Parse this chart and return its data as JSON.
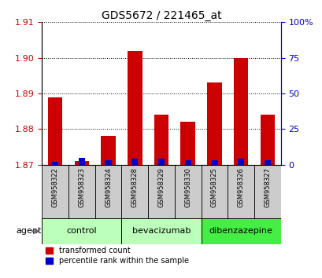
{
  "title": "GDS5672 / 221465_at",
  "samples": [
    "GSM958322",
    "GSM958323",
    "GSM958324",
    "GSM958328",
    "GSM958329",
    "GSM958330",
    "GSM958325",
    "GSM958326",
    "GSM958327"
  ],
  "transformed_count": [
    1.889,
    1.871,
    1.878,
    1.902,
    1.884,
    1.882,
    1.893,
    1.9,
    1.884
  ],
  "percentile_rank": [
    2,
    5,
    3,
    4,
    4,
    3,
    3,
    4,
    3
  ],
  "groups": [
    {
      "label": "control",
      "color": "#bbffbb",
      "start": 0,
      "end": 3
    },
    {
      "label": "bevacizumab",
      "color": "#bbffbb",
      "start": 3,
      "end": 6
    },
    {
      "label": "dibenzazepine",
      "color": "#44ee44",
      "start": 6,
      "end": 9
    }
  ],
  "ylim_left": [
    1.87,
    1.91
  ],
  "ylim_right": [
    0,
    100
  ],
  "yticks_left": [
    1.87,
    1.88,
    1.89,
    1.9,
    1.91
  ],
  "yticks_right": [
    0,
    25,
    50,
    75,
    100
  ],
  "ytick_labels_right": [
    "0",
    "25",
    "50",
    "75",
    "100%"
  ],
  "bar_color_red": "#cc0000",
  "bar_color_blue": "#0000cc",
  "background_color": "#ffffff",
  "agent_label": "agent",
  "legend_red": "transformed count",
  "legend_blue": "percentile rank within the sample",
  "label_color_left": "#cc0000",
  "label_color_right": "#0000cc",
  "sample_box_color": "#cccccc",
  "n_samples": 9
}
